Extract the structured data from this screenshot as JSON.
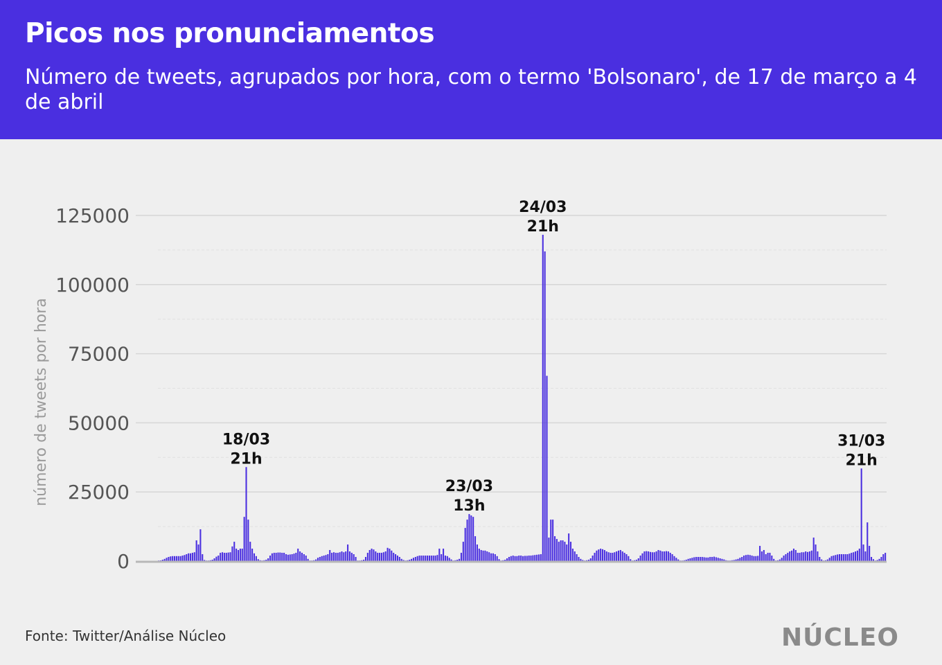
{
  "header": {
    "title": "Picos nos pronunciamentos",
    "subtitle": "Número de tweets, agrupados por hora, com o termo 'Bolsonaro', de 17 de março a 4 de abril"
  },
  "footer": {
    "source": "Fonte: Twitter/Análise Núcleo",
    "logo": "NÚCLEO"
  },
  "colors": {
    "header_bg": "#4a2fe0",
    "bar": "#4a2fe0",
    "background": "#efefef"
  },
  "chart_data": {
    "type": "bar",
    "title": "Picos nos pronunciamentos",
    "subtitle": "Número de tweets, agrupados por hora, com o termo 'Bolsonaro', de 17 de março a 4 de abril",
    "xlabel": "",
    "ylabel": "número de tweets por hora",
    "ylim": [
      0,
      125000
    ],
    "yticks": [
      0,
      25000,
      50000,
      75000,
      100000,
      125000
    ],
    "ytick_labels": [
      "0",
      "25000",
      "50000",
      "75000",
      "100000",
      "125000"
    ],
    "x_unit": "hour",
    "x_start_label": "17/03 0h",
    "grid": "horizontal",
    "values": [
      200,
      250,
      500,
      800,
      1200,
      1500,
      1700,
      1800,
      1800,
      1800,
      1800,
      1800,
      2000,
      2200,
      2500,
      2800,
      2800,
      3000,
      3200,
      7500,
      6000,
      11500,
      2500,
      400,
      200,
      200,
      300,
      500,
      1000,
      1600,
      2000,
      3000,
      3200,
      3000,
      3000,
      3100,
      3200,
      5300,
      7000,
      4500,
      4000,
      4500,
      4500,
      16000,
      34000,
      15000,
      7000,
      4500,
      2800,
      1800,
      700,
      300,
      200,
      300,
      500,
      1000,
      2000,
      2800,
      3000,
      3000,
      3100,
      3100,
      3000,
      3000,
      2500,
      2300,
      2400,
      2500,
      2700,
      3000,
      4500,
      3500,
      3000,
      2500,
      2000,
      800,
      200,
      200,
      300,
      600,
      1200,
      1500,
      1800,
      2000,
      2200,
      2500,
      4000,
      3000,
      3200,
      3000,
      3000,
      3200,
      3500,
      3200,
      3500,
      6000,
      3500,
      3000,
      2500,
      1500,
      200,
      200,
      300,
      500,
      1500,
      3000,
      4000,
      4500,
      4200,
      3500,
      3000,
      3000,
      3000,
      3200,
      3500,
      4800,
      4500,
      3800,
      3000,
      2500,
      2000,
      1500,
      800,
      400,
      200,
      300,
      500,
      800,
      1200,
      1500,
      1800,
      2000,
      2000,
      2000,
      2000,
      2000,
      2000,
      2000,
      2000,
      2000,
      2200,
      4500,
      2500,
      4500,
      2000,
      1800,
      1200,
      600,
      200,
      300,
      500,
      800,
      3000,
      7000,
      12000,
      15000,
      17000,
      16500,
      16000,
      9000,
      6000,
      4500,
      4000,
      3800,
      3800,
      3500,
      3200,
      2800,
      2800,
      2500,
      1800,
      700,
      200,
      300,
      500,
      1000,
      1500,
      1800,
      2000,
      1800,
      1800,
      2000,
      2000,
      1800,
      1900,
      1900,
      2000,
      2000,
      2100,
      2200,
      2300,
      2400,
      2500,
      118000,
      112000,
      67000,
      8500,
      15000,
      15000,
      9000,
      8000,
      7000,
      7500,
      7500,
      7000,
      6000,
      10000,
      7000,
      4500,
      3500,
      2500,
      1500,
      800,
      400,
      200,
      300,
      500,
      1000,
      2000,
      3000,
      3800,
      4200,
      4500,
      4300,
      4000,
      3500,
      3200,
      3000,
      3000,
      3200,
      3500,
      3800,
      4000,
      3500,
      3000,
      2500,
      1800,
      700,
      200,
      300,
      500,
      1000,
      2000,
      2800,
      3500,
      3600,
      3500,
      3300,
      3200,
      3200,
      3500,
      4000,
      3800,
      3500,
      3500,
      3600,
      3500,
      3000,
      2500,
      1800,
      1200,
      600,
      200,
      200,
      300,
      500,
      800,
      1000,
      1200,
      1400,
      1500,
      1500,
      1500,
      1500,
      1400,
      1300,
      1300,
      1500,
      1500,
      1600,
      1400,
      1200,
      1000,
      800,
      600,
      300,
      200,
      200,
      300,
      400,
      600,
      800,
      1200,
      1500,
      2000,
      2200,
      2300,
      2200,
      2000,
      1800,
      1800,
      1900,
      5500,
      3500,
      4000,
      2500,
      3000,
      3000,
      2000,
      800,
      200,
      300,
      600,
      1200,
      2000,
      2500,
      3000,
      3500,
      3800,
      4500,
      4000,
      3000,
      3000,
      3200,
      3200,
      3500,
      3300,
      3500,
      3800,
      8500,
      6000,
      3500,
      1500,
      600,
      200,
      300,
      600,
      1200,
      1800,
      2000,
      2200,
      2400,
      2500,
      2500,
      2500,
      2500,
      2500,
      2700,
      3000,
      3200,
      3500,
      3800,
      4500,
      33500,
      6000,
      3500,
      14000,
      5500,
      1500,
      700,
      200,
      400,
      800,
      1500,
      2500,
      3000
    ],
    "annotations": [
      {
        "label": "18/03",
        "sublabel": "21h",
        "value": 34000
      },
      {
        "label": "23/03",
        "sublabel": "13h",
        "value": 17000
      },
      {
        "label": "24/03",
        "sublabel": "21h",
        "value": 118000
      },
      {
        "label": "31/03",
        "sublabel": "21h",
        "value": 33500
      }
    ]
  }
}
